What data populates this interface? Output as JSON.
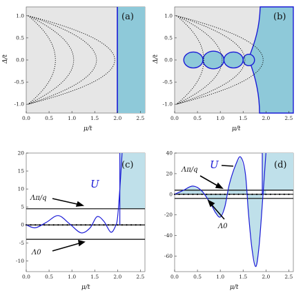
{
  "figure": {
    "panels": [
      {
        "label": "(a)",
        "xlabel": "μ/t",
        "ylabel": "Δ/t"
      },
      {
        "label": "(b)",
        "xlabel": "μ/t",
        "ylabel": "Δ/t"
      },
      {
        "label": "(c)",
        "xlabel": "μ/t",
        "ylabel": "",
        "annotations": {
          "U": "U",
          "lambda_q": "Λπ/q",
          "lambda_0": "Λ0"
        }
      },
      {
        "label": "(d)",
        "xlabel": "μ/t",
        "ylabel": "",
        "annotations": {
          "U": "U",
          "lambda_q": "Λπ/q",
          "lambda_0": "Λ0"
        }
      }
    ]
  },
  "colors": {
    "background_region": "#e6e6e6",
    "topological_region": "#8ec9d9",
    "u_region": "#bfe0ea",
    "boundary": "#1a1ad6",
    "dotted": "#000000"
  },
  "chart_data": [
    {
      "type": "area",
      "panel": "(a)",
      "xlim": [
        0,
        2.6
      ],
      "ylim": [
        -1.2,
        1.2
      ],
      "xticks": [
        "0.0",
        "0.5",
        "1.0",
        "1.5",
        "2.0",
        "2.5"
      ],
      "yticks": [
        "1.0",
        "0.5",
        "0.0",
        "-0.5",
        "-1.0"
      ],
      "phase_boundary_mu": 2.0,
      "dotted_curve_apex_mu": [
        0.6,
        1.0,
        1.5,
        1.9
      ]
    },
    {
      "type": "area",
      "panel": "(b)",
      "xlim": [
        0,
        2.6
      ],
      "ylim": [
        -1.2,
        1.2
      ],
      "xticks": [
        "0.0",
        "0.5",
        "1.0",
        "1.5",
        "2.0",
        "2.5"
      ],
      "yticks": [
        "1.0",
        "0.5",
        "0.0",
        "-0.5",
        "-1.0"
      ],
      "bubbles": [
        {
          "mu_min": 0.2,
          "mu_max": 0.62,
          "half_height": 0.18
        },
        {
          "mu_min": 0.62,
          "mu_max": 1.08,
          "half_height": 0.2
        },
        {
          "mu_min": 1.08,
          "mu_max": 1.5,
          "half_height": 0.18
        },
        {
          "mu_min": 1.5,
          "mu_max": 1.75,
          "half_height": 0.13
        }
      ],
      "dotted_curve_apex_mu": [
        0.6,
        1.0,
        1.5,
        1.9
      ]
    },
    {
      "type": "line",
      "panel": "(c)",
      "xlim": [
        0,
        2.6
      ],
      "ylim": [
        -13,
        20
      ],
      "xticks": [
        "0.0",
        "0.5",
        "1.0",
        "1.5",
        "2.0",
        "2.5"
      ],
      "yticks": [
        "20",
        "15",
        "10",
        "5",
        "0",
        "-5",
        "-10"
      ],
      "lambda_pi_q": 4.5,
      "lambda_0": -4.0,
      "U_curve": {
        "x": [
          0,
          0.2,
          0.45,
          0.7,
          0.95,
          1.2,
          1.4,
          1.55,
          1.7,
          1.85,
          1.95,
          2.0,
          2.05,
          2.1
        ],
        "y": [
          0,
          -0.8,
          0.8,
          2.6,
          0.3,
          -2.2,
          -0.8,
          2.3,
          1.0,
          -2.0,
          -0.5,
          2.0,
          10.0,
          20.0
        ]
      }
    },
    {
      "type": "line",
      "panel": "(d)",
      "xlim": [
        0,
        2.6
      ],
      "ylim": [
        -75,
        40
      ],
      "xticks": [
        "0.0",
        "0.5",
        "1.0",
        "1.5",
        "2.0",
        "2.5"
      ],
      "yticks": [
        "40",
        "20",
        "0",
        "-20",
        "-40",
        "-60"
      ],
      "lambda_pi_q": 4.0,
      "lambda_0": -4.0,
      "U_curve": {
        "x": [
          0,
          0.2,
          0.4,
          0.6,
          0.8,
          0.9,
          1.0,
          1.1,
          1.2,
          1.35,
          1.45,
          1.55,
          1.62,
          1.7,
          1.78,
          1.85,
          1.92,
          2.0
        ],
        "y": [
          0,
          4,
          8,
          3,
          -10,
          -18,
          -22,
          -12,
          10,
          30,
          36,
          20,
          -20,
          -55,
          -70,
          -50,
          -10,
          40
        ]
      }
    }
  ]
}
